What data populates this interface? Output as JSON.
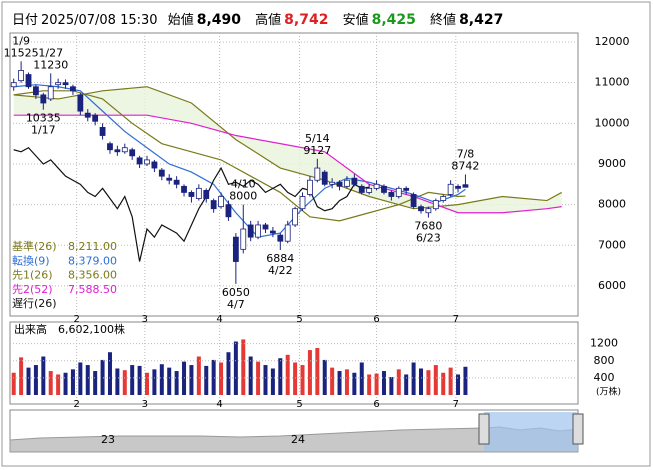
{
  "header": {
    "date_label": "日付",
    "date": "2025/07/08 15:30",
    "open_label": "始値",
    "open": "8,490",
    "high_label": "高値",
    "high": "8,742",
    "low_label": "安値",
    "low": "8,425",
    "close_label": "終値",
    "close": "8,427"
  },
  "chart_data": {
    "type": "candlestick",
    "ylim": [
      5260,
      12222
    ],
    "yticks": [
      6000,
      7000,
      8000,
      9000,
      10000,
      11000,
      12000
    ],
    "xlim": [
      -0.5,
      76.2
    ],
    "xticks": [
      {
        "value": 8.5,
        "label": "2"
      },
      {
        "value": 17.7,
        "label": "3"
      },
      {
        "value": 27.8,
        "label": "4"
      },
      {
        "value": 38.6,
        "label": "5"
      },
      {
        "value": 49,
        "label": "6"
      },
      {
        "value": 59.7,
        "label": "7"
      }
    ],
    "up_color": "#e53935",
    "down_color": "#1a237e",
    "candle_up_fill": "#ffffff",
    "cloud_color": "#e8f3dc",
    "open": [
      10900,
      11050,
      11200,
      10900,
      10700,
      10600,
      10950,
      11000,
      10900,
      10700,
      10250,
      10200,
      9900,
      9500,
      9350,
      9300,
      9350,
      9150,
      9000,
      9050,
      8850,
      8650,
      8600,
      8450,
      8300,
      8150,
      8350,
      8100,
      7950,
      8000,
      7200,
      6900,
      7500,
      7200,
      7500,
      7350,
      7250,
      7100,
      7500,
      7900,
      8250,
      8600,
      8800,
      8500,
      8550,
      8450,
      8650,
      8450,
      8300,
      8400,
      8450,
      8300,
      8200,
      8400,
      8250,
      7950,
      7800,
      7900,
      8100,
      8250,
      8450,
      8490
    ],
    "high": [
      11100,
      11525,
      11250,
      10950,
      10750,
      11230,
      11100,
      11080,
      10950,
      10750,
      10350,
      10250,
      10000,
      9550,
      9450,
      9500,
      9400,
      9200,
      9200,
      9100,
      8900,
      8750,
      8700,
      8500,
      8350,
      8500,
      8400,
      8150,
      8300,
      8100,
      7300,
      8000,
      7600,
      7600,
      7550,
      7450,
      7300,
      7600,
      7950,
      8300,
      8700,
      9127,
      8850,
      8650,
      8600,
      8700,
      8750,
      8500,
      8500,
      8600,
      8500,
      8350,
      8450,
      8450,
      8300,
      8000,
      7950,
      8150,
      8250,
      8600,
      8500,
      8742
    ],
    "low": [
      10800,
      11000,
      10850,
      10600,
      10335,
      10550,
      10850,
      10850,
      10700,
      10200,
      10050,
      9950,
      9600,
      9250,
      9200,
      9250,
      9100,
      8900,
      8950,
      8800,
      8600,
      8500,
      8400,
      8200,
      8050,
      8100,
      8050,
      7800,
      7900,
      7600,
      6050,
      6800,
      7100,
      7150,
      7300,
      7200,
      6884,
      7050,
      7450,
      7850,
      8200,
      8550,
      8450,
      8400,
      8350,
      8400,
      8450,
      8250,
      8250,
      8350,
      8250,
      8100,
      8150,
      8250,
      7900,
      7780,
      7680,
      7850,
      8050,
      8200,
      8300,
      8425
    ],
    "close": [
      11000,
      11300,
      10900,
      10700,
      10500,
      10900,
      11000,
      10950,
      10800,
      10300,
      10150,
      10050,
      9700,
      9350,
      9300,
      9400,
      9200,
      9000,
      9100,
      8900,
      8700,
      8600,
      8500,
      8300,
      8200,
      8400,
      8150,
      7900,
      8200,
      7700,
      6600,
      7400,
      7200,
      7500,
      7400,
      7300,
      7100,
      7500,
      7900,
      8200,
      8600,
      8900,
      8500,
      8550,
      8450,
      8600,
      8500,
      8300,
      8400,
      8500,
      8300,
      8200,
      8400,
      8350,
      7950,
      7850,
      7900,
      8100,
      8200,
      8500,
      8400,
      8427
    ],
    "series": [
      {
        "name": "基準(26)",
        "value_label": "8,211.00",
        "color": "#7a7a1a",
        "x": [
          0,
          4,
          8,
          12,
          16,
          20,
          24,
          28,
          32,
          36,
          40,
          44,
          48,
          52,
          56,
          60,
          61
        ],
        "values": [
          10700,
          10800,
          10800,
          10600,
          10000,
          9500,
          9300,
          9100,
          8700,
          8300,
          7700,
          7600,
          7800,
          8000,
          8300,
          8200,
          8211
        ]
      },
      {
        "name": "転換(9)",
        "value_label": "8,379.00",
        "color": "#2f6fd6",
        "x": [
          0,
          3,
          6,
          9,
          12,
          15,
          18,
          21,
          24,
          27,
          30,
          33,
          36,
          39,
          42,
          45,
          48,
          51,
          54,
          57,
          60,
          61
        ],
        "values": [
          10900,
          10950,
          10900,
          10800,
          10300,
          9800,
          9400,
          9000,
          8800,
          8500,
          7800,
          7200,
          7300,
          7900,
          8400,
          8650,
          8550,
          8400,
          8250,
          8050,
          8250,
          8379
        ]
      },
      {
        "name": "先1(26)",
        "value_label": "8,356.00",
        "color": "#7a7a1a",
        "x": [
          0,
          6,
          12,
          18,
          24,
          30,
          36,
          42,
          48,
          54,
          60,
          66,
          72,
          74
        ],
        "values": [
          10700,
          10600,
          10800,
          10900,
          10500,
          9600,
          8900,
          8600,
          8200,
          7900,
          8000,
          8200,
          8100,
          8300
        ]
      },
      {
        "name": "先2(52)",
        "value_label": "7,588.50",
        "color": "#e020d0",
        "x": [
          0,
          6,
          12,
          18,
          24,
          30,
          36,
          42,
          48,
          54,
          60,
          66,
          72,
          74
        ],
        "values": [
          10200,
          10200,
          10200,
          10200,
          10000,
          9700,
          9500,
          9300,
          8500,
          8200,
          7800,
          7800,
          7900,
          7950
        ]
      },
      {
        "name": "遅行(26)",
        "color": "#111111",
        "x": [
          0,
          1,
          2,
          3,
          4,
          5,
          6,
          7,
          8,
          9,
          10,
          11,
          12,
          13,
          14,
          15,
          16,
          17,
          18,
          19,
          20,
          21,
          22,
          23,
          24,
          25,
          26,
          27,
          28,
          29,
          30,
          31,
          32,
          33,
          34,
          35,
          36,
          37,
          38,
          39,
          40,
          41,
          42,
          43,
          44,
          45,
          46,
          47,
          48
        ],
        "values": [
          9350,
          9300,
          9400,
          9200,
          9000,
          9100,
          8900,
          8700,
          8600,
          8500,
          8300,
          8200,
          8400,
          8150,
          7900,
          8200,
          7700,
          6600,
          7400,
          7200,
          7500,
          7400,
          7300,
          7100,
          7500,
          7900,
          8200,
          8600,
          8900,
          8500,
          8550,
          8450,
          8600,
          8500,
          8300,
          8400,
          8500,
          8300,
          8200,
          8400,
          8350,
          7950,
          7850,
          7900,
          8100,
          8200,
          8500,
          8400,
          8427
        ]
      }
    ],
    "annotations": [
      {
        "x": 1,
        "at": "high",
        "lines": [
          "1/9",
          "11525"
        ]
      },
      {
        "x": 5,
        "at": "high",
        "lines": [
          "1/27",
          "11230"
        ]
      },
      {
        "x": 4,
        "at": "low",
        "lines": [
          "10335",
          "1/17"
        ]
      },
      {
        "x": 31,
        "at": "high",
        "lines": [
          "4/10",
          "8000"
        ]
      },
      {
        "x": 30,
        "at": "low",
        "lines": [
          "6050",
          "4/7"
        ]
      },
      {
        "x": 36,
        "at": "low",
        "lines": [
          "6884",
          "4/22"
        ]
      },
      {
        "x": 41,
        "at": "high",
        "lines": [
          "5/14",
          "9127"
        ]
      },
      {
        "x": 61,
        "at": "high",
        "lines": [
          "7/8",
          "8742"
        ]
      },
      {
        "x": 56,
        "at": "low",
        "lines": [
          "7680",
          "6/23"
        ]
      }
    ],
    "volume": {
      "label": "出来高",
      "value_label": "6,602,100株",
      "unit": "(万株)",
      "ylim": [
        0,
        1660
      ],
      "yticks": [
        400,
        800,
        1200
      ],
      "values": [
        520,
        880,
        640,
        700,
        900,
        560,
        480,
        520,
        600,
        760,
        700,
        560,
        820,
        1000,
        620,
        580,
        700,
        680,
        520,
        600,
        720,
        640,
        560,
        780,
        700,
        900,
        680,
        820,
        760,
        1000,
        1250,
        1300,
        900,
        780,
        700,
        620,
        860,
        940,
        760,
        700,
        1050,
        1100,
        820,
        640,
        560,
        600,
        520,
        760,
        480,
        500,
        560,
        420,
        600,
        480,
        760,
        620,
        580,
        700,
        520,
        640,
        480,
        660
      ]
    },
    "navigator": {
      "labels": [
        "23",
        "24"
      ]
    }
  }
}
